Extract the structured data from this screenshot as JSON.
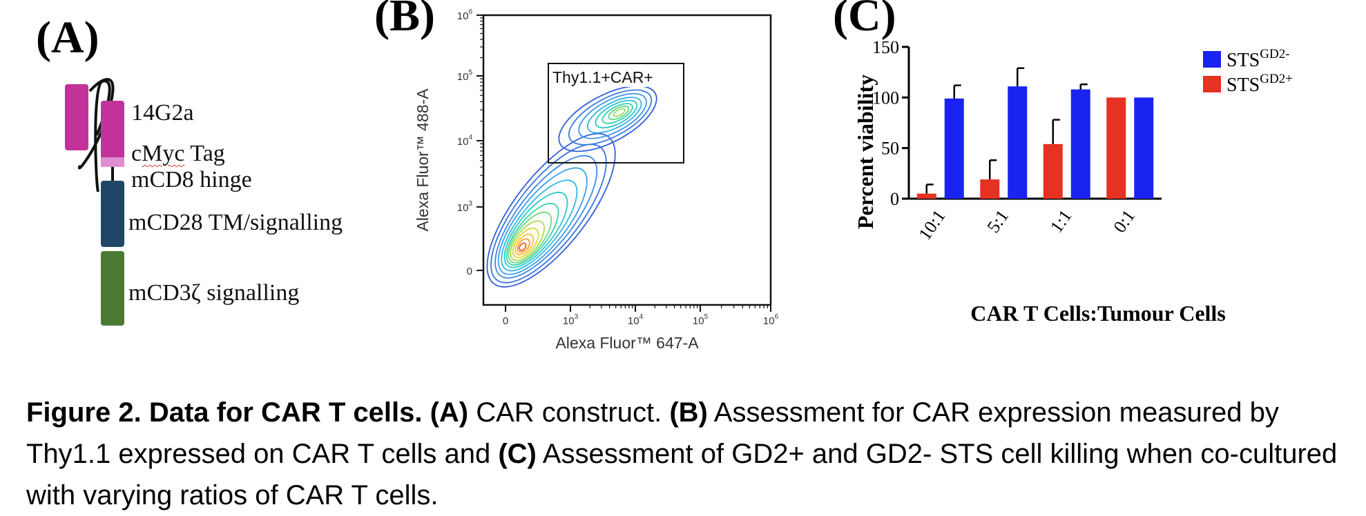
{
  "panel_a": {
    "letter": "(A)",
    "labels": {
      "scfv": "14G2a",
      "tag_prefix": "c",
      "tag_word": "Myc",
      "tag_suffix": " Tag",
      "hinge": "mCD8 hinge",
      "tm": "mCD28 TM/signalling",
      "cd3": "mCD3ζ signalling"
    },
    "colors": {
      "scfv": "#c2339a",
      "tag": "#e08fd0",
      "tm": "#1f4666",
      "cd3": "#4b7a35"
    }
  },
  "panel_b": {
    "letter": "(B)",
    "gate_label": "Thy1.1+CAR+",
    "x_axis_label": "Alexa Fluor™ 647-A",
    "y_axis_label": "Alexa Fluor™ 488-A",
    "x_ticks": [
      {
        "base": "0",
        "exp": ""
      },
      {
        "base": "10",
        "exp": "3"
      },
      {
        "base": "10",
        "exp": "4"
      },
      {
        "base": "10",
        "exp": "5"
      },
      {
        "base": "10",
        "exp": "6"
      }
    ],
    "y_ticks": [
      {
        "base": "0",
        "exp": ""
      },
      {
        "base": "10",
        "exp": "3"
      },
      {
        "base": "10",
        "exp": "4"
      },
      {
        "base": "10",
        "exp": "5"
      },
      {
        "base": "10",
        "exp": "6"
      }
    ]
  },
  "panel_c": {
    "letter": "(C)",
    "chart_data": {
      "type": "bar",
      "xlabel": "CAR T Cells:Tumour Cells",
      "ylabel": "Percent viability",
      "ylim": [
        0,
        150
      ],
      "yticks": [
        0,
        50,
        100,
        150
      ],
      "categories": [
        "10:1",
        "5:1",
        "1:1",
        "0:1"
      ],
      "series": [
        {
          "name": "STS",
          "name_sup": "GD2+",
          "color": "#e53222",
          "values": [
            5,
            19,
            54,
            100
          ],
          "errors": [
            9,
            19,
            24,
            0
          ]
        },
        {
          "name": "STS",
          "name_sup": "GD2-",
          "color": "#1a24f0",
          "values": [
            99,
            111,
            108,
            100
          ],
          "errors": [
            13,
            18,
            5,
            0
          ]
        }
      ],
      "legend_order": [
        1,
        0
      ],
      "legend_position": "top-right"
    }
  },
  "caption": {
    "fig": "Figure 2. Data for CAR T cells.",
    "a_label": "(A)",
    "a_text": " CAR construct. ",
    "b_label": "(B)",
    "b_text": " Assessment for CAR expression measured by Thy1.1 expressed on CAR T cells and ",
    "c_label": "(C)",
    "c_text": " Assessment of GD2+ and GD2- STS cell killing when co-cultured with varying ratios of CAR T cells."
  }
}
